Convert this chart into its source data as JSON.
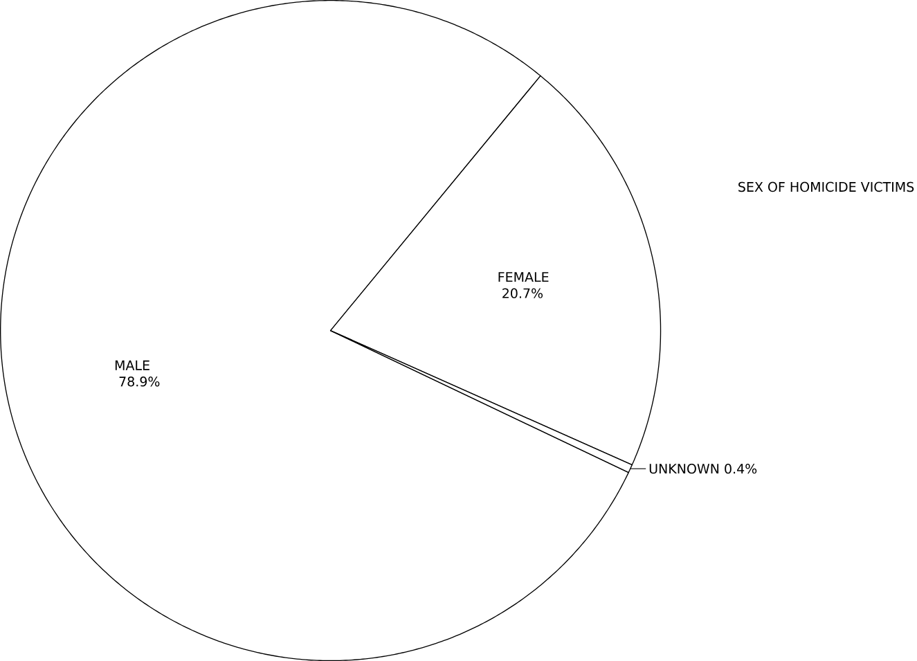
{
  "chart_data": {
    "type": "pie",
    "title": "SEX OF HOMICIDE VICTIMS",
    "categories": [
      "MALE",
      "FEMALE",
      "UNKNOWN"
    ],
    "values": [
      78.9,
      20.7,
      0.4
    ],
    "colors": [
      "#ffffff",
      "#ffffff",
      "#ffffff"
    ],
    "value_labels": [
      "78.9%",
      "20.7%",
      "0.4%"
    ]
  }
}
